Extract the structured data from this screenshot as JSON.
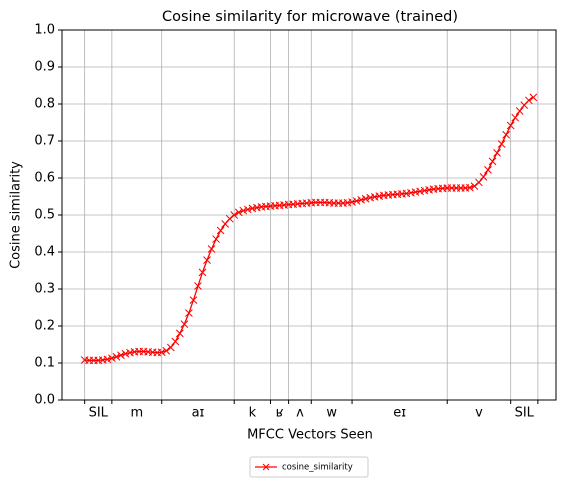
{
  "chart_data": {
    "type": "line",
    "title": "Cosine similarity for microwave (trained)",
    "x_label": "MFCC Vectors Seen",
    "y_label": "Cosine similarity",
    "x": [
      0,
      1,
      2,
      3,
      4,
      5,
      6,
      7,
      8,
      9,
      10,
      11,
      12,
      13,
      14,
      15,
      16,
      17,
      18,
      19,
      20,
      21,
      22,
      23,
      24,
      25,
      26,
      27,
      28,
      29,
      30,
      31,
      32,
      33,
      34,
      35,
      36,
      37,
      38,
      39,
      40,
      41,
      42,
      43,
      44,
      45,
      46,
      47,
      48,
      49,
      50,
      51,
      52,
      53,
      54,
      55,
      56,
      57,
      58,
      59,
      60,
      61,
      62,
      63,
      64,
      65,
      66,
      67,
      68,
      69,
      70,
      71,
      72,
      73,
      74,
      75,
      76,
      77,
      78,
      79,
      80,
      81,
      82,
      83,
      84,
      85,
      86,
      87,
      88,
      89,
      90,
      91,
      92,
      93,
      94,
      95,
      96,
      97,
      98,
      99
    ],
    "series": [
      {
        "name": "cosine_similarity",
        "color": "#ff0000",
        "marker": "x",
        "values": [
          0.108,
          0.107,
          0.107,
          0.107,
          0.108,
          0.11,
          0.113,
          0.117,
          0.121,
          0.125,
          0.128,
          0.13,
          0.131,
          0.131,
          0.13,
          0.129,
          0.128,
          0.129,
          0.133,
          0.142,
          0.158,
          0.18,
          0.205,
          0.235,
          0.27,
          0.308,
          0.345,
          0.378,
          0.408,
          0.435,
          0.458,
          0.476,
          0.49,
          0.5,
          0.507,
          0.512,
          0.515,
          0.518,
          0.52,
          0.522,
          0.523,
          0.524,
          0.525,
          0.526,
          0.527,
          0.528,
          0.529,
          0.53,
          0.531,
          0.532,
          0.533,
          0.534,
          0.534,
          0.534,
          0.533,
          0.532,
          0.532,
          0.532,
          0.533,
          0.535,
          0.538,
          0.541,
          0.544,
          0.547,
          0.549,
          0.551,
          0.553,
          0.554,
          0.555,
          0.556,
          0.557,
          0.558,
          0.56,
          0.562,
          0.564,
          0.566,
          0.568,
          0.57,
          0.571,
          0.572,
          0.573,
          0.573,
          0.573,
          0.573,
          0.573,
          0.574,
          0.578,
          0.588,
          0.603,
          0.622,
          0.645,
          0.668,
          0.692,
          0.717,
          0.742,
          0.763,
          0.781,
          0.797,
          0.81,
          0.818
        ]
      }
    ],
    "xlim": [
      -5,
      104
    ],
    "ylim": [
      0,
      1
    ],
    "yticks": [
      {
        "value": 0,
        "label": "0.0"
      },
      0.1,
      0.2,
      0.3,
      0.4,
      0.5,
      0.6,
      0.7,
      0.8,
      0.9,
      {
        "value": 1,
        "label": "1.0"
      }
    ],
    "xgrid": [
      0,
      6,
      17,
      33,
      41,
      45,
      50,
      59,
      80,
      94,
      100
    ],
    "xticks": [
      {
        "value": 3,
        "label": "SIL"
      },
      {
        "value": 11.5,
        "label": "m"
      },
      {
        "value": 25,
        "label": "aɪ"
      },
      {
        "value": 37,
        "label": "k"
      },
      {
        "value": 43,
        "label": "ʁ"
      },
      {
        "value": 47.5,
        "label": "ʌ"
      },
      {
        "value": 54.5,
        "label": "w"
      },
      {
        "value": 69.5,
        "label": "eɪ"
      },
      {
        "value": 87,
        "label": "v"
      },
      {
        "value": 97,
        "label": "SIL"
      }
    ],
    "grid": true,
    "legend": "bottom"
  }
}
